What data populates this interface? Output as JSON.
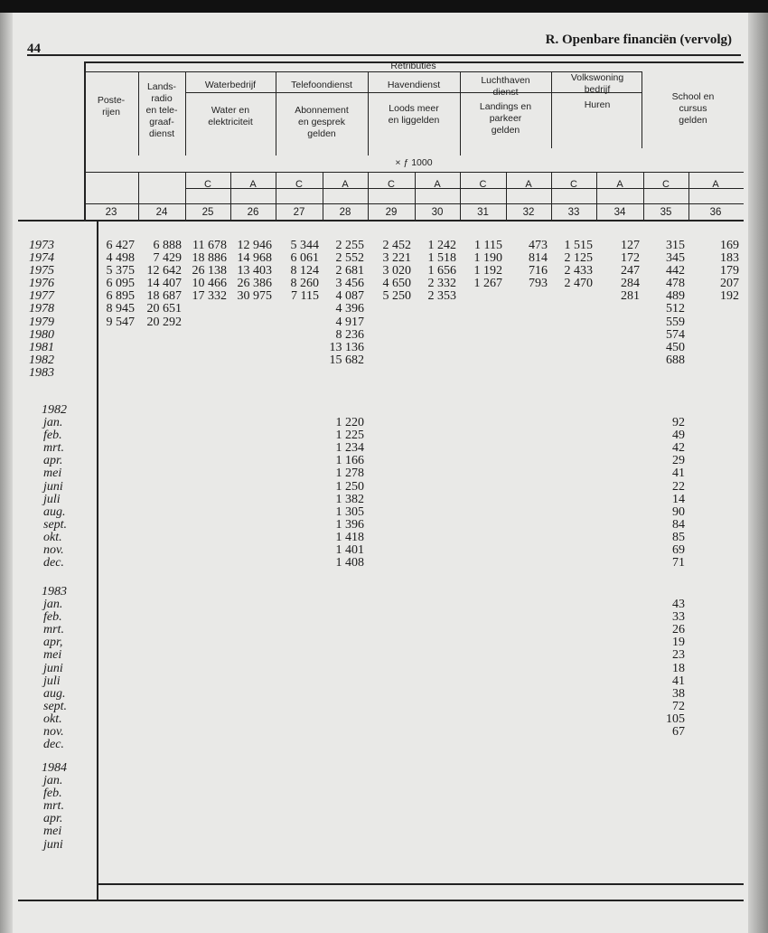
{
  "page_number": "44",
  "running_head": "R. Openbare financiën (vervolg)",
  "header": {
    "group": "Retributies",
    "unit": "× ƒ 1000",
    "columns": {
      "c23": "Poste-\nrijen",
      "c24": "Lands-\nradio\nen tele-\ngraaf-\ndienst",
      "water": "Waterbedrijf",
      "water_sub": "Water en\nelektriciteit",
      "tel": "Telefoondienst",
      "tel_sub": "Abonnement\nen gesprek\ngelden",
      "haven": "Havendienst",
      "haven_sub": "Loods meer\nen liggelden",
      "lucht": "Luchthaven\ndienst",
      "lucht_sub": "Landings en\nparkeer\ngelden",
      "volks": "Volkswoning\nbedrijf",
      "volks_sub": "Huren",
      "school": "School en\ncursus\ngelden"
    },
    "ca": [
      "C",
      "A",
      "C",
      "A",
      "C",
      "A",
      "C",
      "A",
      "C",
      "A",
      "C",
      "A"
    ],
    "numbers": [
      "23",
      "24",
      "25",
      "26",
      "27",
      "28",
      "29",
      "30",
      "31",
      "32",
      "33",
      "34",
      "35",
      "36"
    ]
  },
  "annual": [
    {
      "label": "1973",
      "v": [
        "6 427",
        "6 888",
        "11 678",
        "12 946",
        "5 344",
        "2 255",
        "2 452",
        "1 242",
        "1 115",
        "473",
        "1 515",
        "127",
        "315",
        "169"
      ]
    },
    {
      "label": "1974",
      "v": [
        "4 498",
        "7 429",
        "18 886",
        "14 968",
        "6 061",
        "2 552",
        "3 221",
        "1 518",
        "1 190",
        "814",
        "2 125",
        "172",
        "345",
        "183"
      ]
    },
    {
      "label": "1975",
      "v": [
        "5 375",
        "12 642",
        "26 138",
        "13 403",
        "8 124",
        "2 681",
        "3 020",
        "1 656",
        "1 192",
        "716",
        "2 433",
        "247",
        "442",
        "179"
      ]
    },
    {
      "label": "1976",
      "v": [
        "6 095",
        "14 407",
        "10 466",
        "26 386",
        "8 260",
        "3 456",
        "4 650",
        "2 332",
        "1 267",
        "793",
        "2 470",
        "284",
        "478",
        "207"
      ]
    },
    {
      "label": "1977",
      "v": [
        "6 895",
        "18 687",
        "17 332",
        "30 975",
        "7 115",
        "4 087",
        "5 250",
        "2 353",
        "",
        "",
        "",
        "281",
        "489",
        "192"
      ]
    },
    {
      "label": "1978",
      "v": [
        "8 945",
        "20 651",
        "",
        "",
        "",
        "4 396",
        "",
        "",
        "",
        "",
        "",
        "",
        "512",
        ""
      ]
    },
    {
      "label": "1979",
      "v": [
        "9 547",
        "20 292",
        "",
        "",
        "",
        "4 917",
        "",
        "",
        "",
        "",
        "",
        "",
        "559",
        ""
      ]
    },
    {
      "label": "1980",
      "v": [
        "",
        "",
        "",
        "",
        "",
        "8 236",
        "",
        "",
        "",
        "",
        "",
        "",
        "574",
        ""
      ]
    },
    {
      "label": "1981",
      "v": [
        "",
        "",
        "",
        "",
        "",
        "13 136",
        "",
        "",
        "",
        "",
        "",
        "",
        "450",
        ""
      ]
    },
    {
      "label": "1982",
      "v": [
        "",
        "",
        "",
        "",
        "",
        "15 682",
        "",
        "",
        "",
        "",
        "",
        "",
        "688",
        ""
      ]
    },
    {
      "label": "1983",
      "v": [
        "",
        "",
        "",
        "",
        "",
        "",
        "",
        "",
        "",
        "",
        "",
        "",
        "",
        ""
      ]
    }
  ],
  "monthly": [
    {
      "year": "1982",
      "rows": [
        {
          "label": "jan.",
          "c28": "1 220",
          "c35": "92"
        },
        {
          "label": "feb.",
          "c28": "1 225",
          "c35": "49"
        },
        {
          "label": "mrt.",
          "c28": "1 234",
          "c35": "42"
        },
        {
          "label": "apr.",
          "c28": "1 166",
          "c35": "29"
        },
        {
          "label": "mei",
          "c28": "1 278",
          "c35": "41"
        },
        {
          "label": "juni",
          "c28": "1 250",
          "c35": "22"
        },
        {
          "label": "juli",
          "c28": "1 382",
          "c35": "14"
        },
        {
          "label": "aug.",
          "c28": "1 305",
          "c35": "90"
        },
        {
          "label": "sept.",
          "c28": "1 396",
          "c35": "84"
        },
        {
          "label": "okt.",
          "c28": "1 418",
          "c35": "85"
        },
        {
          "label": "nov.",
          "c28": "1 401",
          "c35": "69"
        },
        {
          "label": "dec.",
          "c28": "1 408",
          "c35": "71"
        }
      ]
    },
    {
      "year": "1983",
      "rows": [
        {
          "label": "jan.",
          "c35": "43"
        },
        {
          "label": "feb.",
          "c35": "33"
        },
        {
          "label": "mrt.",
          "c35": "26"
        },
        {
          "label": "apr,",
          "c35": "19"
        },
        {
          "label": "mei",
          "c35": "23"
        },
        {
          "label": "juni",
          "c35": "18"
        },
        {
          "label": "juli",
          "c35": "41"
        },
        {
          "label": "aug.",
          "c35": "38"
        },
        {
          "label": "sept.",
          "c35": "72"
        },
        {
          "label": "okt.",
          "c35": "105"
        },
        {
          "label": "nov.",
          "c35": "67"
        },
        {
          "label": "dec.",
          "c35": ""
        }
      ]
    },
    {
      "year": "1984",
      "rows": [
        {
          "label": "jan."
        },
        {
          "label": "feb."
        },
        {
          "label": "mrt."
        },
        {
          "label": "apr."
        },
        {
          "label": "mei"
        },
        {
          "label": "juni"
        }
      ]
    }
  ]
}
